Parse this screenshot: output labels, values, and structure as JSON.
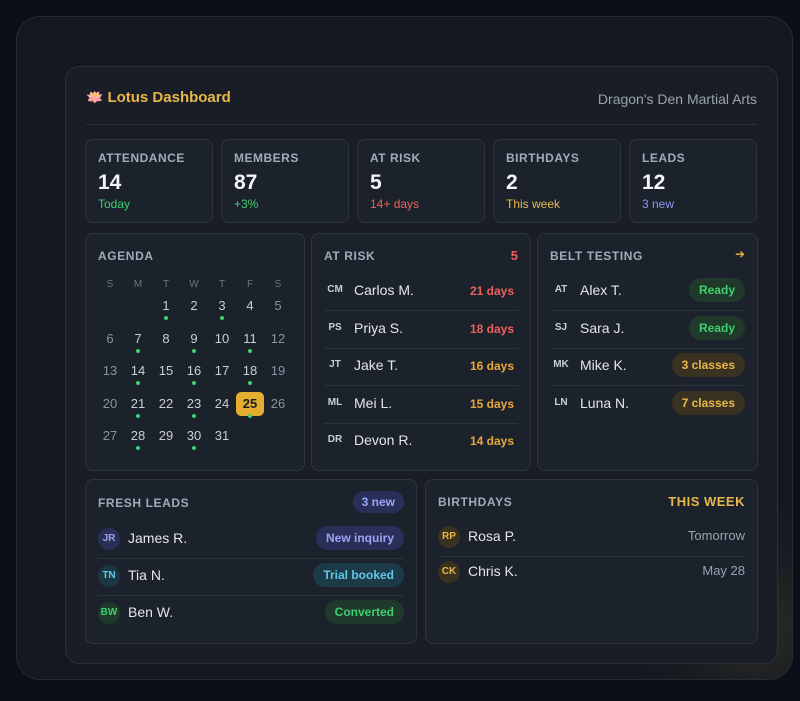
{
  "header": {
    "brand_icon": "🪷",
    "title": "Lotus Dashboard",
    "org": "Dragon's Den Martial Arts"
  },
  "stats": [
    {
      "label": "ATTENDANCE",
      "value": "14",
      "sub": "Today",
      "sub_color": "#3ecf6e"
    },
    {
      "label": "MEMBERS",
      "value": "87",
      "sub": "+3%",
      "sub_color": "#3ecf6e"
    },
    {
      "label": "AT RISK",
      "value": "5",
      "sub": "14+ days",
      "sub_color": "#f0605a"
    },
    {
      "label": "BIRTHDAYS",
      "value": "2",
      "sub": "This week",
      "sub_color": "#e8b84a"
    },
    {
      "label": "LEADS",
      "value": "12",
      "sub": "3 new",
      "sub_color": "#8c95f0"
    }
  ],
  "agenda": {
    "title": "AGENDA",
    "weekdays": [
      "S",
      "M",
      "T",
      "W",
      "T",
      "F",
      "S"
    ],
    "weeks": [
      [
        "",
        "",
        "1",
        "2",
        "3",
        "4",
        "5"
      ],
      [
        "6",
        "7",
        "8",
        "9",
        "10",
        "11",
        "12"
      ],
      [
        "13",
        "14",
        "15",
        "16",
        "17",
        "18",
        "19"
      ],
      [
        "20",
        "21",
        "22",
        "23",
        "24",
        "25",
        "26"
      ],
      [
        "27",
        "28",
        "29",
        "30",
        "31",
        "",
        ""
      ]
    ],
    "today": "25",
    "event_days": [
      "1",
      "3",
      "7",
      "9",
      "11",
      "14",
      "16",
      "18",
      "21",
      "23",
      "25",
      "28",
      "30"
    ]
  },
  "at_risk": {
    "title": "AT RISK",
    "count": "5",
    "items": [
      {
        "initials": "CM",
        "name": "Carlos M.",
        "days": "21 days",
        "color": "#f0605a"
      },
      {
        "initials": "PS",
        "name": "Priya S.",
        "days": "18 days",
        "color": "#f0605a"
      },
      {
        "initials": "JT",
        "name": "Jake T.",
        "days": "16 days",
        "color": "#e8a93a"
      },
      {
        "initials": "ML",
        "name": "Mei L.",
        "days": "15 days",
        "color": "#e8a93a"
      },
      {
        "initials": "DR",
        "name": "Devon R.",
        "days": "14 days",
        "color": "#e8a93a"
      }
    ]
  },
  "belt_testing": {
    "title": "BELT TESTING",
    "arrow": "➜",
    "items": [
      {
        "initials": "AT",
        "name": "Alex T.",
        "status": "Ready",
        "fg": "#3ecf6e",
        "bg": "#1f3a2b"
      },
      {
        "initials": "SJ",
        "name": "Sara J.",
        "status": "Ready",
        "fg": "#3ecf6e",
        "bg": "#1f3a2b"
      },
      {
        "initials": "MK",
        "name": "Mike K.",
        "status": "3 classes",
        "fg": "#e8b84a",
        "bg": "#3a3220"
      },
      {
        "initials": "LN",
        "name": "Luna N.",
        "status": "7 classes",
        "fg": "#e8b84a",
        "bg": "#3a3220"
      }
    ]
  },
  "fresh_leads": {
    "title": "FRESH LEADS",
    "badge": "3 new",
    "items": [
      {
        "initials": "JR",
        "name": "James R.",
        "status": "New inquiry",
        "fg": "#9aa3f5",
        "bg": "#2a2f5a",
        "cfg": "#9aa3f5",
        "cbg": "#2a2f55"
      },
      {
        "initials": "TN",
        "name": "Tia N.",
        "status": "Trial booked",
        "fg": "#5fc9e8",
        "bg": "#1d3a48",
        "cfg": "#5fc9e8",
        "cbg": "#1c3744"
      },
      {
        "initials": "BW",
        "name": "Ben W.",
        "status": "Converted",
        "fg": "#3ecf6e",
        "bg": "#1f3a2b",
        "cfg": "#3ecf6e",
        "cbg": "#1f3a2b"
      }
    ]
  },
  "birthdays": {
    "title": "BIRTHDAYS",
    "range": "THIS WEEK",
    "items": [
      {
        "initials": "RP",
        "name": "Rosa P.",
        "when": "Tomorrow"
      },
      {
        "initials": "CK",
        "name": "Chris K.",
        "when": "May 28"
      }
    ]
  }
}
